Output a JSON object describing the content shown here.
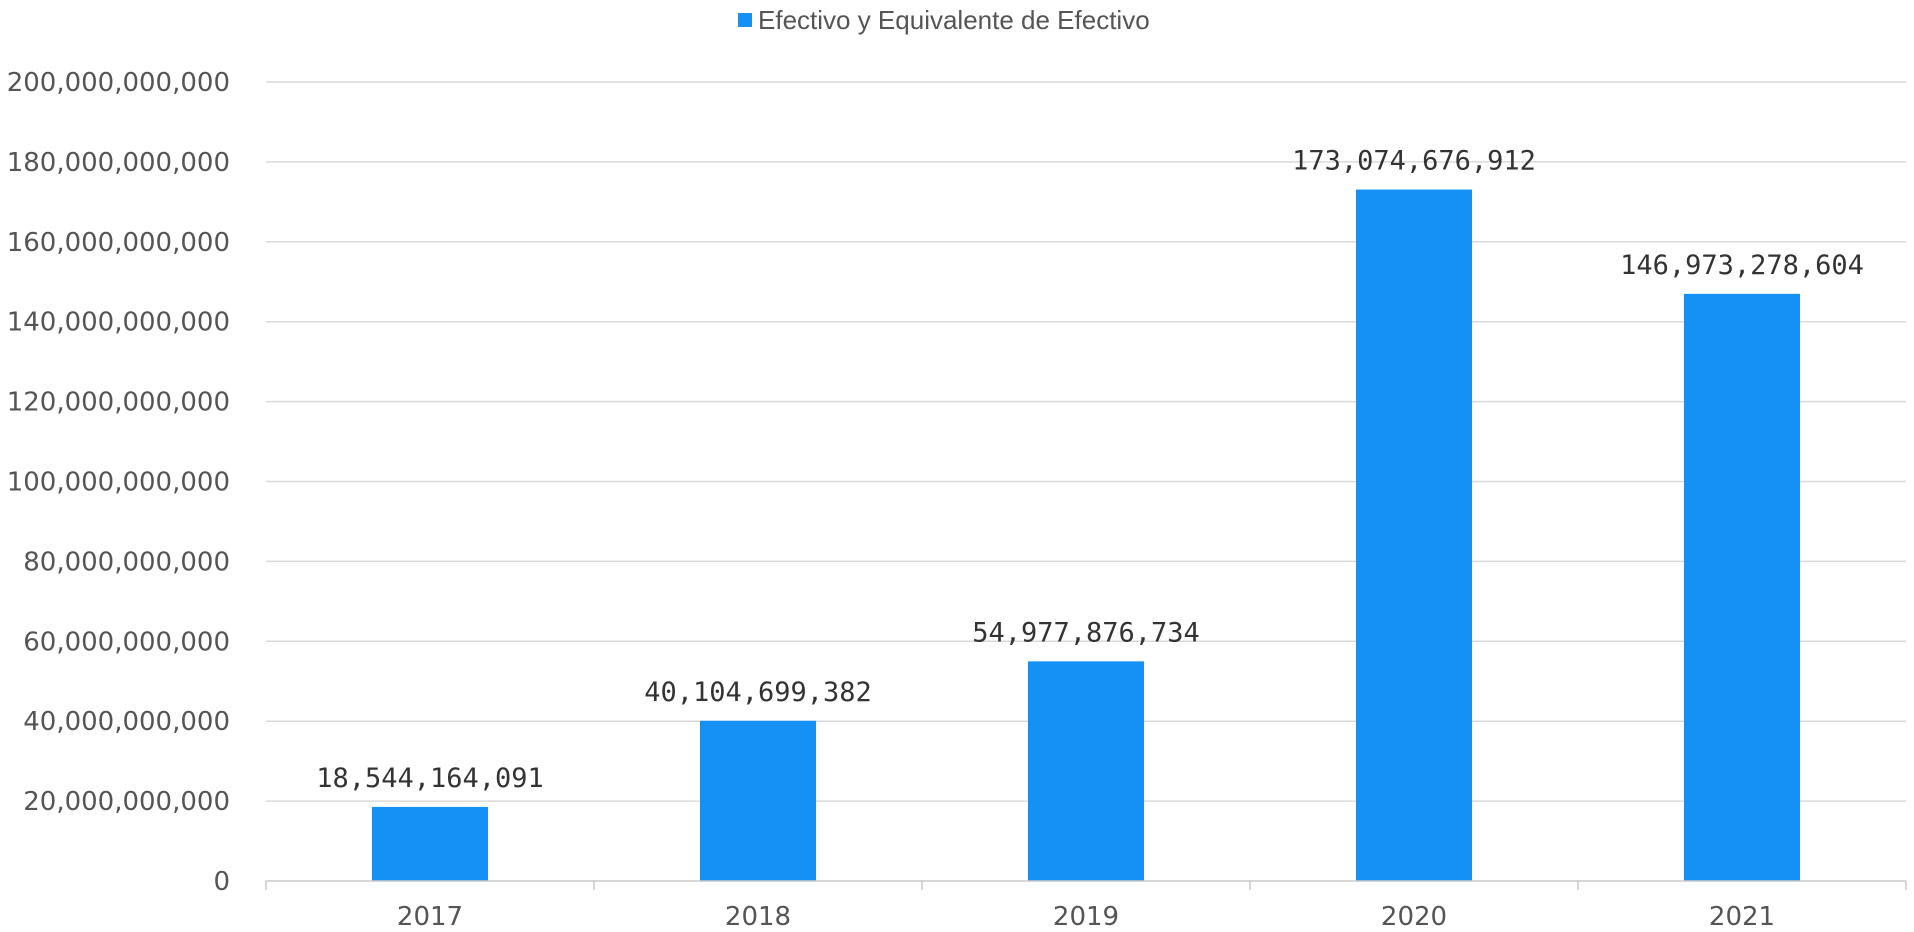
{
  "chart_data": {
    "type": "bar",
    "categories": [
      "2017",
      "2018",
      "2019",
      "2020",
      "2021"
    ],
    "series": [
      {
        "name": "Efectivo y Equivalente de Efectivo",
        "values": [
          18544164091,
          40104699382,
          54977876734,
          173074676912,
          146973278604
        ],
        "value_labels": [
          "18,544,164,091",
          "40,104,699,382",
          "54,977,876,734",
          "173,074,676,912",
          "146,973,278,604"
        ]
      }
    ],
    "y_ticks": [
      "0",
      "20,000,000,000",
      "40,000,000,000",
      "60,000,000,000",
      "80,000,000,000",
      "100,000,000,000",
      "120,000,000,000",
      "140,000,000,000",
      "160,000,000,000",
      "180,000,000,000",
      "200,000,000,000"
    ],
    "ylim": [
      0,
      200000000000
    ],
    "title": "",
    "xlabel": "",
    "ylabel": "",
    "grid": true,
    "legend_position": "top-center",
    "colors": {
      "bar": "#1591f6",
      "text": "#555555",
      "grid": "#d9d9d9"
    }
  }
}
